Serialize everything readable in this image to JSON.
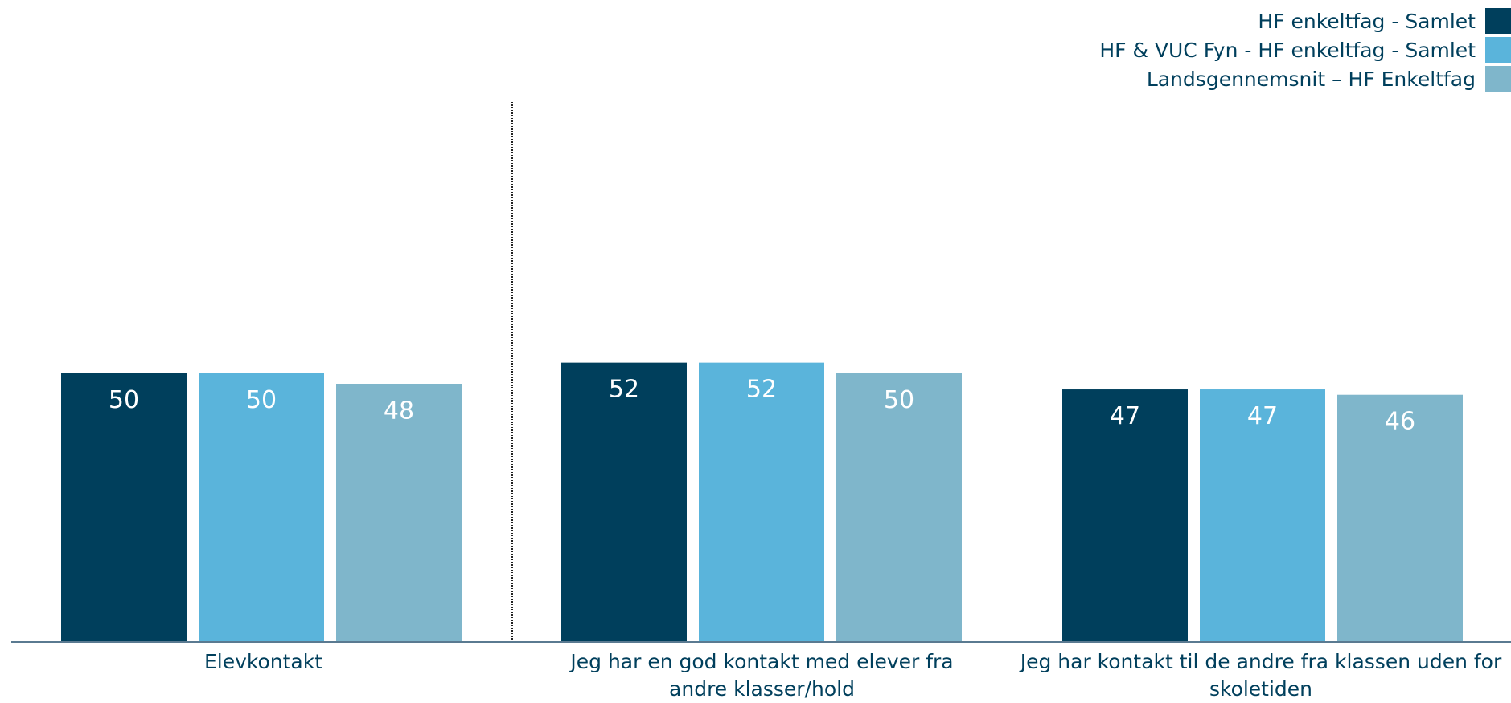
{
  "chart_data": {
    "type": "bar",
    "categories": [
      "Elevkontakt",
      "Jeg har en god kontakt med elever fra andre klasser/hold",
      "Jeg har kontakt til de andre fra klassen uden for skoletiden"
    ],
    "series": [
      {
        "name": "HF enkeltfag - Samlet",
        "values": [
          50,
          52,
          47
        ],
        "color": "#003f5c"
      },
      {
        "name": "HF & VUC Fyn - HF enkeltfag - Samlet",
        "values": [
          50,
          52,
          47
        ],
        "color": "#5ab4db"
      },
      {
        "name": "Landsgennemsnit – HF Enkeltfag",
        "values": [
          48,
          50,
          46
        ],
        "color": "#7fb6cb"
      }
    ],
    "title": "",
    "xlabel": "",
    "ylabel": "",
    "ylim": [
      0,
      100
    ],
    "grid": false,
    "legend_position": "top-right",
    "data_label_color": "#ffffff",
    "axis_color": "#5a7a91"
  }
}
